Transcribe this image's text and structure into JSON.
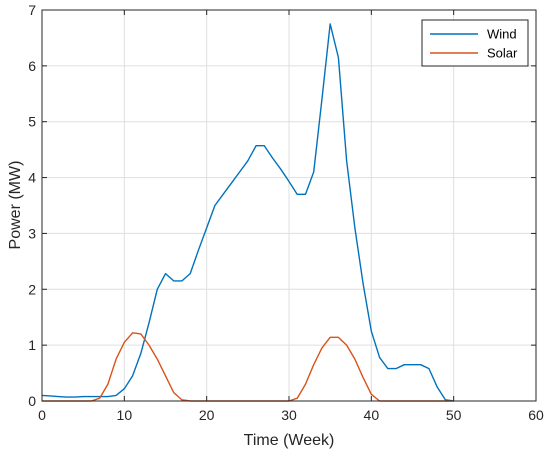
{
  "chart_data": {
    "type": "line",
    "title": "",
    "xlabel": "Time (Week)",
    "ylabel": "Power (MW)",
    "xlim": [
      0,
      60
    ],
    "ylim": [
      0,
      7
    ],
    "xticks": [
      0,
      10,
      20,
      30,
      40,
      50,
      60
    ],
    "yticks": [
      0,
      1,
      2,
      3,
      4,
      5,
      6,
      7
    ],
    "xtick_labels": [
      "0",
      "10",
      "20",
      "30",
      "40",
      "50",
      "60"
    ],
    "ytick_labels": [
      "0",
      "1",
      "2",
      "3",
      "4",
      "5",
      "6",
      "7"
    ],
    "grid": true,
    "legend_position": "top-right",
    "series": [
      {
        "name": "Wind",
        "color": "#0072BD",
        "x": [
          0,
          1,
          2,
          3,
          4,
          5,
          6,
          7,
          8,
          9,
          10,
          11,
          12,
          13,
          14,
          15,
          16,
          17,
          18,
          19,
          20,
          21,
          22,
          23,
          24,
          25,
          26,
          27,
          28,
          29,
          30,
          31,
          32,
          33,
          34,
          35,
          36,
          37,
          38,
          39,
          40,
          41,
          42,
          43,
          44,
          45,
          46,
          47,
          48,
          49,
          50
        ],
        "y": [
          0.1,
          0.09,
          0.08,
          0.07,
          0.07,
          0.08,
          0.08,
          0.08,
          0.08,
          0.1,
          0.22,
          0.45,
          0.85,
          1.4,
          2.0,
          2.28,
          2.15,
          2.15,
          2.28,
          2.7,
          3.1,
          3.5,
          3.7,
          3.9,
          4.1,
          4.3,
          4.57,
          4.57,
          4.35,
          4.15,
          3.93,
          3.7,
          3.7,
          4.1,
          5.4,
          6.75,
          6.15,
          4.3,
          3.1,
          2.1,
          1.25,
          0.78,
          0.58,
          0.58,
          0.65,
          0.65,
          0.65,
          0.58,
          0.25,
          0.02,
          0.0
        ]
      },
      {
        "name": "Solar",
        "color": "#D95319",
        "x": [
          0,
          6,
          7,
          8,
          9,
          10,
          11,
          12,
          13,
          14,
          15,
          16,
          17,
          18,
          30,
          31,
          32,
          33,
          34,
          35,
          36,
          37,
          38,
          39,
          40,
          41,
          42,
          50
        ],
        "y": [
          0,
          0,
          0.05,
          0.3,
          0.75,
          1.05,
          1.22,
          1.2,
          1.0,
          0.75,
          0.45,
          0.15,
          0.02,
          0,
          0,
          0.05,
          0.3,
          0.65,
          0.95,
          1.14,
          1.14,
          1.0,
          0.75,
          0.42,
          0.12,
          0.0,
          0.0,
          0.0
        ]
      }
    ]
  }
}
